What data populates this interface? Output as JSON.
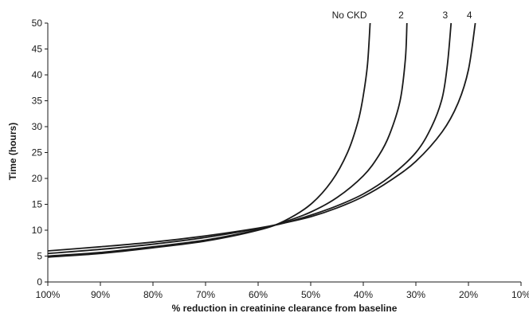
{
  "chart_data": {
    "type": "line",
    "title": "",
    "xlabel": "% reduction in creatinine clearance from baseline",
    "ylabel": "Time (hours)",
    "x_tick_labels": [
      "100%",
      "90%",
      "80%",
      "70%",
      "60%",
      "50%",
      "40%",
      "30%",
      "20%",
      "10%"
    ],
    "x_ticks": [
      100,
      90,
      80,
      70,
      60,
      50,
      40,
      30,
      20,
      10
    ],
    "y_tick_labels": [
      "0",
      "5",
      "10",
      "15",
      "20",
      "25",
      "30",
      "35",
      "40",
      "45",
      "50"
    ],
    "y_ticks": [
      0,
      5,
      10,
      15,
      20,
      25,
      30,
      35,
      40,
      45,
      50
    ],
    "xlim": [
      100,
      10
    ],
    "ylim": [
      0,
      50
    ],
    "grid": false,
    "legend": "none",
    "series": [
      {
        "name": "No CKD",
        "x": [
          100,
          90,
          80,
          70,
          60,
          55,
          50,
          46,
          43,
          41,
          40,
          39.2,
          38.7
        ],
        "y": [
          4.8,
          5.5,
          6.6,
          7.9,
          10.0,
          11.8,
          15.0,
          19.5,
          25.0,
          31.0,
          36.0,
          42.0,
          50.0
        ]
      },
      {
        "name": "2",
        "x": [
          100,
          90,
          80,
          70,
          60,
          55,
          50,
          45,
          40,
          37,
          35,
          33,
          32,
          31.7
        ],
        "y": [
          5.0,
          5.7,
          6.8,
          8.1,
          10.1,
          11.6,
          13.5,
          16.3,
          20.5,
          24.5,
          28.5,
          35.0,
          43.0,
          50.0
        ]
      },
      {
        "name": "3",
        "x": [
          100,
          90,
          80,
          70,
          60,
          55,
          50,
          45,
          40,
          35,
          30,
          27,
          25,
          24,
          23.3
        ],
        "y": [
          5.5,
          6.3,
          7.3,
          8.6,
          10.3,
          11.4,
          12.9,
          14.7,
          17.0,
          20.3,
          25.0,
          30.0,
          35.5,
          42.0,
          50.0
        ]
      },
      {
        "name": "4",
        "x": [
          100,
          90,
          80,
          70,
          60,
          55,
          50,
          45,
          40,
          35,
          30,
          25,
          22,
          20,
          18.7
        ],
        "y": [
          6.0,
          6.8,
          7.7,
          8.9,
          10.4,
          11.4,
          12.6,
          14.3,
          16.5,
          19.5,
          23.3,
          29.0,
          34.5,
          41.0,
          50.0
        ]
      }
    ]
  }
}
